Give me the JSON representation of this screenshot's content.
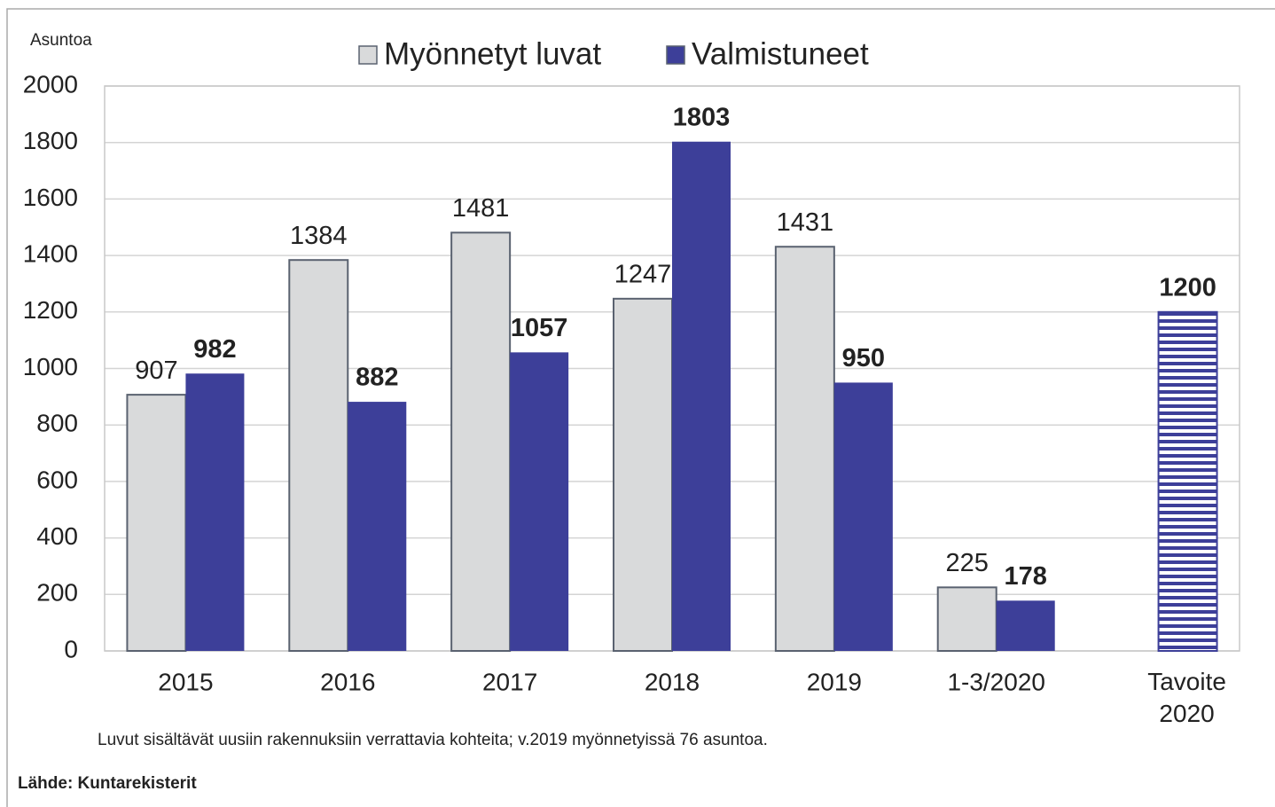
{
  "chart_data": {
    "type": "bar",
    "y_label": "Asuntoa",
    "categories": [
      "2015",
      "2016",
      "2017",
      "2018",
      "2019",
      "1-3/2020",
      "Tavoite 2020"
    ],
    "series": [
      {
        "name": "Myönnetyt luvat",
        "color": "#d9dadb",
        "values": [
          907,
          1384,
          1481,
          1247,
          1431,
          225,
          null
        ]
      },
      {
        "name": "Valmistuneet",
        "color": "#3d3f99",
        "values": [
          982,
          882,
          1057,
          1803,
          950,
          178,
          1200
        ],
        "hatched": [
          false,
          false,
          false,
          false,
          false,
          false,
          true
        ]
      }
    ],
    "ylim": [
      0,
      2000
    ],
    "yticks": [
      0,
      200,
      400,
      600,
      800,
      1000,
      1200,
      1400,
      1600,
      1800,
      2000
    ],
    "grid": true,
    "legend": "top",
    "note": "Luvut sisältävät uusiin rakennuksiin verrattavia kohteita; v.2019 myönnetyissä 76 asuntoa.",
    "source": "Lähde: Kuntarekisterit"
  }
}
